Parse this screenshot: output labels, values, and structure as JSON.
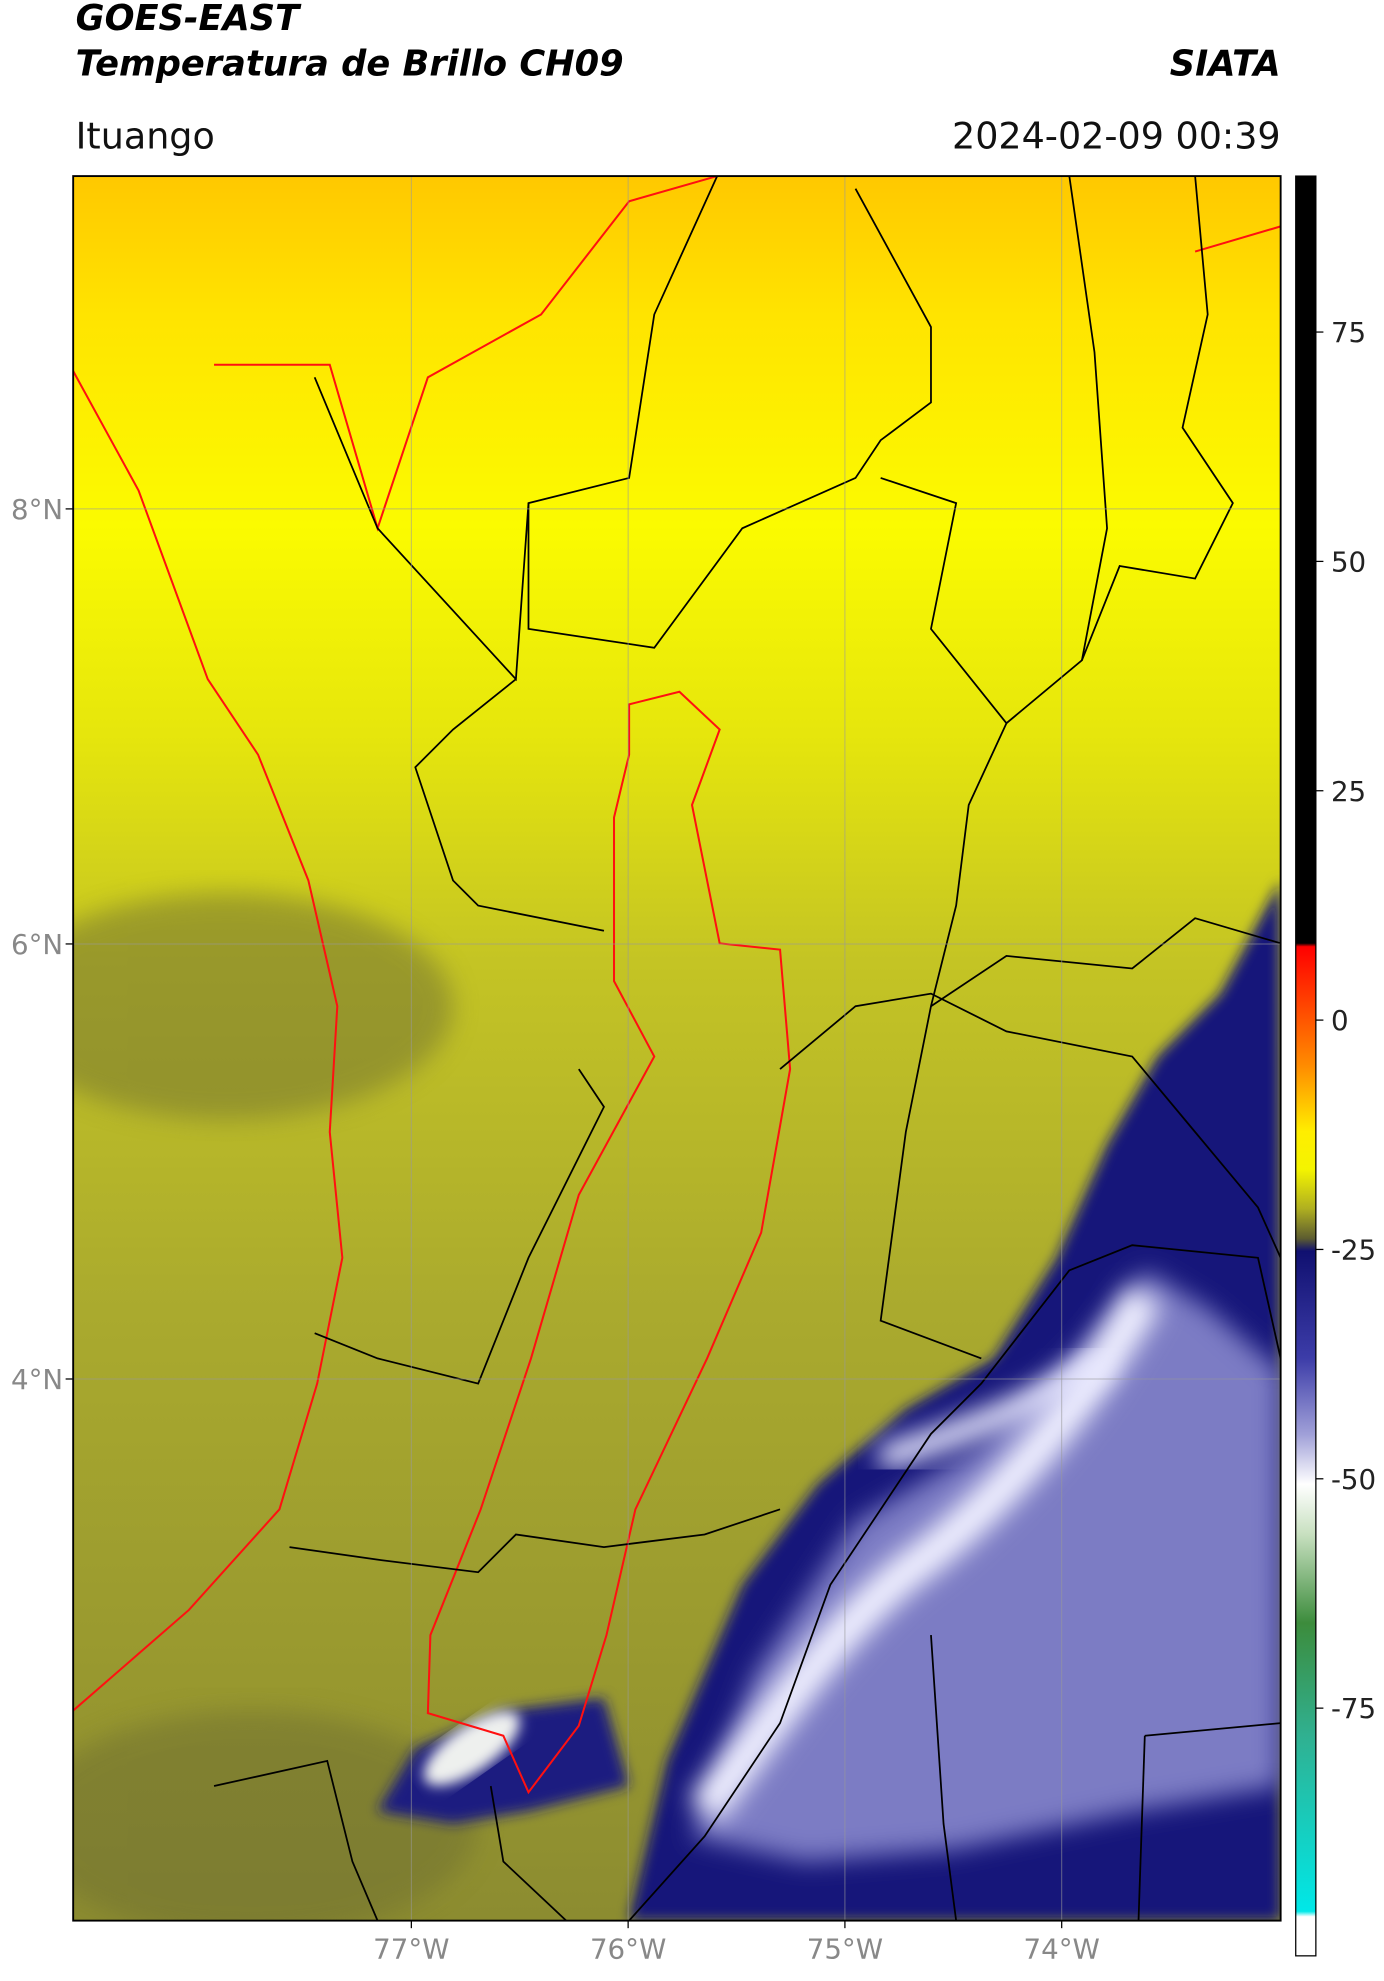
{
  "header": {
    "title_line1": "GOES-EAST",
    "title_line2": "Temperatura de Brillo CH09",
    "source": "SIATA",
    "location": "Ituango",
    "timestamp": "2024-02-09 00:39"
  },
  "map": {
    "xlim": [
      -78.56,
      -72.99
    ],
    "ylim": [
      1.51,
      9.53
    ],
    "xticks": [
      {
        "value": -77,
        "label": "77°W"
      },
      {
        "value": -76,
        "label": "76°W"
      },
      {
        "value": -75,
        "label": "75°W"
      },
      {
        "value": -74,
        "label": "74°W"
      }
    ],
    "yticks": [
      {
        "value": 4,
        "label": "4°N"
      },
      {
        "value": 6,
        "label": "6°N"
      },
      {
        "value": 8,
        "label": "8°N"
      }
    ],
    "grid": true
  },
  "colorbar": {
    "ylim": [
      -102,
      92
    ],
    "yticks": [
      -75,
      -50,
      -25,
      0,
      25,
      50,
      75
    ]
  }
}
